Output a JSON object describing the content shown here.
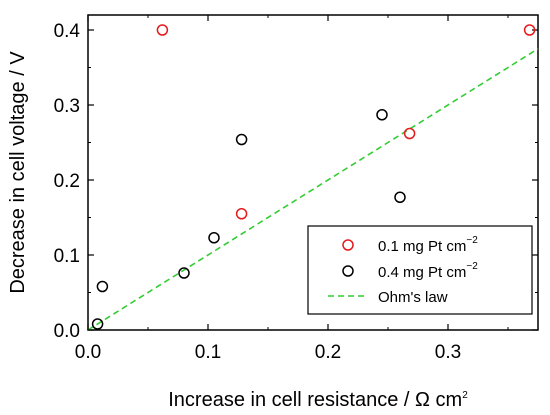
{
  "chart_data": {
    "type": "scatter",
    "xlabel": {
      "main": "Increase in cell resistance / Ω cm",
      "sup": "2"
    },
    "ylabel": "Decrease in cell voltage / V",
    "xlim": [
      0,
      0.375
    ],
    "ylim": [
      0,
      0.42
    ],
    "x_ticks": [
      0.0,
      0.1,
      0.2,
      0.3
    ],
    "x_tick_labels": [
      "0.0",
      "0.1",
      "0.2",
      "0.3"
    ],
    "y_ticks": [
      0.0,
      0.1,
      0.2,
      0.3,
      0.4
    ],
    "y_tick_labels": [
      "0.0",
      "0.1",
      "0.2",
      "0.3",
      "0.4"
    ],
    "grid": false,
    "legend_position": "bottom-right",
    "series": [
      {
        "name": {
          "main": "0.1 mg Pt cm",
          "sup": "−2"
        },
        "marker": "open-circle",
        "color": "#e41a1c",
        "x": [
          0.062,
          0.128,
          0.268,
          0.368
        ],
        "y": [
          0.4,
          0.155,
          0.262,
          0.4
        ]
      },
      {
        "name": {
          "main": "0.4 mg Pt cm",
          "sup": "−2"
        },
        "marker": "open-circle",
        "color": "#000000",
        "x": [
          0.008,
          0.012,
          0.08,
          0.105,
          0.128,
          0.245,
          0.26
        ],
        "y": [
          0.008,
          0.058,
          0.076,
          0.123,
          0.254,
          0.287,
          0.177
        ]
      },
      {
        "name": "Ohm's law",
        "style": "dashed-line",
        "color": "#33cc33",
        "x": [
          0.0,
          0.375
        ],
        "y": [
          0.0,
          0.375
        ]
      }
    ]
  }
}
